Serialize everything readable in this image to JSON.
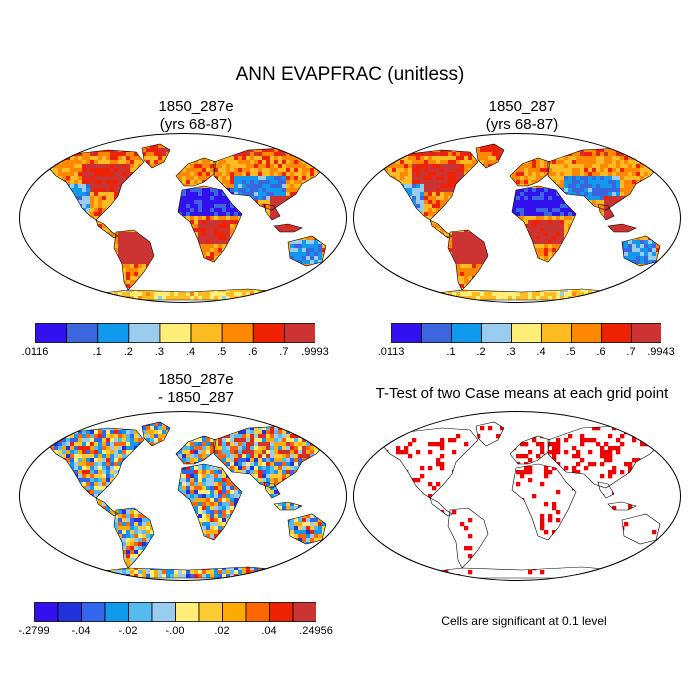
{
  "main_title": "ANN EVAPFRAC (unitless)",
  "colors": {
    "palette9": [
      "#3311ee",
      "#3b66dd",
      "#1199ee",
      "#99ccee",
      "#ffee77",
      "#ffbb22",
      "#ff8800",
      "#ee2200",
      "#cc3333"
    ],
    "palette12": [
      "#3311ee",
      "#2233dd",
      "#3366ee",
      "#1199ee",
      "#55bbee",
      "#99ccee",
      "#ffee77",
      "#ffcc33",
      "#ffaa00",
      "#ff6600",
      "#ee2200",
      "#cc3333"
    ],
    "significant": "#ee0000",
    "land": "#ffffff",
    "coast": "#000000"
  },
  "chart_data": [
    {
      "type": "heatmap",
      "title_line1": "1850_287e",
      "title_line2": "(yrs 68-87)",
      "colorbar_labels": [
        ".0116",
        ".1",
        ".2",
        ".3",
        ".4",
        ".5",
        ".6",
        ".7",
        ".9993"
      ],
      "levels": [
        0.0116,
        0.1,
        0.2,
        0.3,
        0.4,
        0.5,
        0.6,
        0.7,
        0.9993
      ]
    },
    {
      "type": "heatmap",
      "title_line1": "1850_287",
      "title_line2": "(yrs 68-87)",
      "colorbar_labels": [
        ".0113",
        ".1",
        ".2",
        ".3",
        ".4",
        ".5",
        ".6",
        ".7",
        ".9943"
      ],
      "levels": [
        0.0113,
        0.1,
        0.2,
        0.3,
        0.4,
        0.5,
        0.6,
        0.7,
        0.9943
      ]
    },
    {
      "type": "heatmap",
      "title_line1": "1850_287e",
      "title_line2": "- 1850_287",
      "colorbar_labels": [
        "-.2799",
        "-.04",
        "-.02",
        "-.00",
        ".02",
        ".04",
        ".24956"
      ],
      "levels": [
        -0.2799,
        -0.04,
        -0.02,
        -0.0,
        0.02,
        0.04,
        0.24956
      ]
    },
    {
      "type": "heatmap",
      "title_line1": "T-Test of two Case means at each grid point",
      "note": "Cells are significant at 0.1 level",
      "significance_level": 0.1
    }
  ]
}
